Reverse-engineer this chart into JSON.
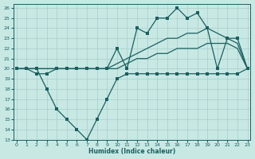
{
  "xlabel": "Humidex (Indice chaleur)",
  "bg_color": "#c8e8e4",
  "grid_color": "#a8ceca",
  "line_color": "#1a6060",
  "xlim": [
    -0.3,
    23.3
  ],
  "ylim": [
    13,
    26.4
  ],
  "xticks": [
    0,
    1,
    2,
    3,
    4,
    5,
    6,
    7,
    8,
    9,
    10,
    11,
    12,
    13,
    14,
    15,
    16,
    17,
    18,
    19,
    20,
    21,
    22,
    23
  ],
  "yticks": [
    13,
    14,
    15,
    16,
    17,
    18,
    19,
    20,
    21,
    22,
    23,
    24,
    25,
    26
  ],
  "line1_x": [
    0,
    1,
    2,
    3,
    4,
    5,
    6,
    7,
    8,
    9,
    10,
    11,
    12,
    13,
    14,
    15,
    16,
    17,
    18,
    19,
    20,
    21,
    22,
    23
  ],
  "line1_y": [
    20,
    20,
    19.5,
    19.5,
    20,
    20,
    20,
    20,
    20,
    20,
    22,
    20,
    24,
    23.5,
    25,
    25,
    26,
    25,
    25.5,
    24,
    20,
    23,
    23,
    20
  ],
  "line2_x": [
    0,
    1,
    2,
    3,
    4,
    5,
    6,
    7,
    8,
    9,
    10,
    11,
    12,
    13,
    14,
    15,
    16,
    17,
    18,
    19,
    20,
    21,
    22,
    23
  ],
  "line2_y": [
    20,
    20,
    20,
    20,
    20,
    20,
    20,
    20,
    20,
    20,
    20.5,
    21,
    21.5,
    22,
    22.5,
    23,
    23,
    23.5,
    23.5,
    24,
    23.5,
    23,
    22.5,
    20
  ],
  "line3_x": [
    0,
    1,
    2,
    3,
    4,
    5,
    6,
    7,
    8,
    9,
    10,
    11,
    12,
    13,
    14,
    15,
    16,
    17,
    18,
    19,
    20,
    21,
    22,
    23
  ],
  "line3_y": [
    20,
    20,
    20,
    20,
    20,
    20,
    20,
    20,
    20,
    20,
    20,
    20.5,
    21,
    21,
    21.5,
    21.5,
    22,
    22,
    22,
    22.5,
    22.5,
    22.5,
    22,
    20
  ],
  "line4_x": [
    0,
    1,
    2,
    3,
    4,
    5,
    6,
    7,
    8,
    9,
    10,
    11,
    12,
    13,
    14,
    15,
    16,
    17,
    18,
    19,
    20,
    21,
    22,
    23
  ],
  "line4_y": [
    20,
    20,
    20,
    18,
    16,
    15,
    14,
    13,
    15,
    17,
    19,
    19.5,
    19.5,
    19.5,
    19.5,
    19.5,
    19.5,
    19.5,
    19.5,
    19.5,
    19.5,
    19.5,
    19.5,
    20
  ]
}
